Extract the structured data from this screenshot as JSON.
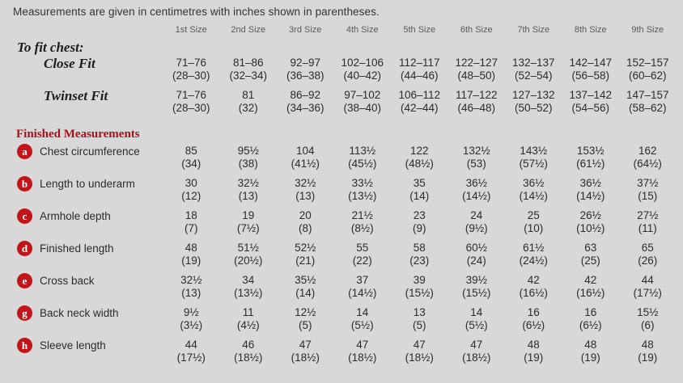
{
  "note": "Measurements are given in centimetres with inches shown in parentheses.",
  "columns": [
    "1st Size",
    "2nd Size",
    "3rd Size",
    "4th Size",
    "5th Size",
    "6th Size",
    "7th Size",
    "8th Size",
    "9th Size"
  ],
  "to_fit_chest": {
    "heading": "To fit chest:",
    "rows": [
      {
        "label": "Close Fit",
        "cm": [
          "71–76",
          "81–86",
          "92–97",
          "102–106",
          "112–117",
          "122–127",
          "132–137",
          "142–147",
          "152–157"
        ],
        "inches": [
          "(28–30)",
          "(32–34)",
          "(36–38)",
          "(40–42)",
          "(44–46)",
          "(48–50)",
          "(52–54)",
          "(56–58)",
          "(60–62)"
        ]
      },
      {
        "label": "Twinset Fit",
        "cm": [
          "71–76",
          "81",
          "86–92",
          "97–102",
          "106–112",
          "117–122",
          "127–132",
          "137–142",
          "147–157"
        ],
        "inches": [
          "(28–30)",
          "(32)",
          "(34–36)",
          "(38–40)",
          "(42–44)",
          "(46–48)",
          "(50–52)",
          "(54–56)",
          "(58–62)"
        ]
      }
    ]
  },
  "finished": {
    "heading": "Finished Measurements",
    "rows": [
      {
        "letter": "a",
        "label": "Chest circumference",
        "cm": [
          "85",
          "95½",
          "104",
          "113½",
          "122",
          "132½",
          "143½",
          "153½",
          "162"
        ],
        "inches": [
          "(34)",
          "(38)",
          "(41½)",
          "(45½)",
          "(48½)",
          "(53)",
          "(57½)",
          "(61½)",
          "(64½)"
        ]
      },
      {
        "letter": "b",
        "label": "Length to underarm",
        "cm": [
          "30",
          "32½",
          "32½",
          "33½",
          "35",
          "36½",
          "36½",
          "36½",
          "37½"
        ],
        "inches": [
          "(12)",
          "(13)",
          "(13)",
          "(13½)",
          "(14)",
          "(14½)",
          "(14½)",
          "(14½)",
          "(15)"
        ]
      },
      {
        "letter": "c",
        "label": "Armhole depth",
        "cm": [
          "18",
          "19",
          "20",
          "21½",
          "23",
          "24",
          "25",
          "26½",
          "27½"
        ],
        "inches": [
          "(7)",
          "(7½)",
          "(8)",
          "(8½)",
          "(9)",
          "(9½)",
          "(10)",
          "(10½)",
          "(11)"
        ]
      },
      {
        "letter": "d",
        "label": "Finished length",
        "cm": [
          "48",
          "51½",
          "52½",
          "55",
          "58",
          "60½",
          "61½",
          "63",
          "65"
        ],
        "inches": [
          "(19)",
          "(20½)",
          "(21)",
          "(22)",
          "(23)",
          "(24)",
          "(24½)",
          "(25)",
          "(26)"
        ]
      },
      {
        "letter": "e",
        "label": "Cross back",
        "cm": [
          "32½",
          "34",
          "35½",
          "37",
          "39",
          "39½",
          "42",
          "42",
          "44"
        ],
        "inches": [
          "(13)",
          "(13½)",
          "(14)",
          "(14½)",
          "(15½)",
          "(15½)",
          "(16½)",
          "(16½)",
          "(17½)"
        ]
      },
      {
        "letter": "g",
        "label": "Back neck width",
        "cm": [
          "9½",
          "11",
          "12½",
          "14",
          "13",
          "14",
          "16",
          "16",
          "15½"
        ],
        "inches": [
          "(3½)",
          "(4½)",
          "(5)",
          "(5½)",
          "(5)",
          "(5½)",
          "(6½)",
          "(6½)",
          "(6)"
        ]
      },
      {
        "letter": "h",
        "label": "Sleeve length",
        "cm": [
          "44",
          "46",
          "47",
          "47",
          "47",
          "47",
          "48",
          "48",
          "48"
        ],
        "inches": [
          "(17½)",
          "(18½)",
          "(18½)",
          "(18½)",
          "(18½)",
          "(18½)",
          "(19)",
          "(19)",
          "(19)"
        ]
      }
    ]
  },
  "colors": {
    "background": "#d8d8d8",
    "heading_red": "#a8101c",
    "badge_red": "#c2151a",
    "text": "#2b2b2b",
    "header_gray": "#595959"
  }
}
